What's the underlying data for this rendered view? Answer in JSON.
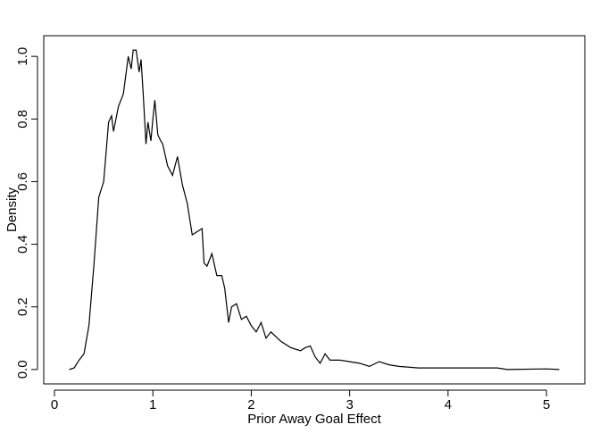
{
  "chart_data": {
    "type": "line",
    "x_label": "Prior Away Goal Effect",
    "y_label": "Density",
    "x": [
      0.15,
      0.2,
      0.25,
      0.3,
      0.35,
      0.4,
      0.45,
      0.5,
      0.55,
      0.58,
      0.6,
      0.65,
      0.7,
      0.75,
      0.78,
      0.8,
      0.83,
      0.86,
      0.88,
      0.9,
      0.93,
      0.95,
      0.98,
      1.0,
      1.02,
      1.05,
      1.08,
      1.1,
      1.15,
      1.2,
      1.25,
      1.3,
      1.35,
      1.4,
      1.45,
      1.5,
      1.52,
      1.55,
      1.6,
      1.65,
      1.7,
      1.73,
      1.77,
      1.8,
      1.85,
      1.9,
      1.95,
      2.0,
      2.05,
      2.1,
      2.15,
      2.2,
      2.3,
      2.4,
      2.5,
      2.55,
      2.6,
      2.65,
      2.7,
      2.75,
      2.8,
      2.9,
      3.0,
      3.1,
      3.2,
      3.3,
      3.4,
      3.5,
      3.7,
      4.0,
      4.5,
      4.6,
      5.0,
      5.13
    ],
    "series": [
      {
        "color": "#000000",
        "values": [
          0.0,
          0.005,
          0.03,
          0.05,
          0.14,
          0.33,
          0.55,
          0.6,
          0.79,
          0.81,
          0.76,
          0.84,
          0.88,
          1.0,
          0.96,
          1.02,
          1.02,
          0.95,
          0.99,
          0.89,
          0.72,
          0.79,
          0.73,
          0.8,
          0.86,
          0.75,
          0.73,
          0.72,
          0.65,
          0.62,
          0.68,
          0.59,
          0.53,
          0.43,
          0.44,
          0.45,
          0.34,
          0.33,
          0.37,
          0.3,
          0.3,
          0.26,
          0.15,
          0.2,
          0.21,
          0.16,
          0.17,
          0.14,
          0.12,
          0.15,
          0.1,
          0.12,
          0.09,
          0.07,
          0.06,
          0.07,
          0.075,
          0.04,
          0.02,
          0.05,
          0.03,
          0.03,
          0.025,
          0.02,
          0.01,
          0.025,
          0.015,
          0.01,
          0.005,
          0.005,
          0.005,
          0.0,
          0.002,
          0.0
        ]
      }
    ],
    "xlim": [
      -0.109,
      5.39
    ],
    "ylim": [
      -0.046,
      1.066
    ],
    "xticks": [
      0,
      1,
      2,
      3,
      4,
      5
    ],
    "yticks": [
      {
        "value": 0,
        "label": "0.0"
      },
      0.2,
      0.4,
      0.6,
      0.8,
      {
        "value": 1,
        "label": "1.0"
      }
    ]
  }
}
